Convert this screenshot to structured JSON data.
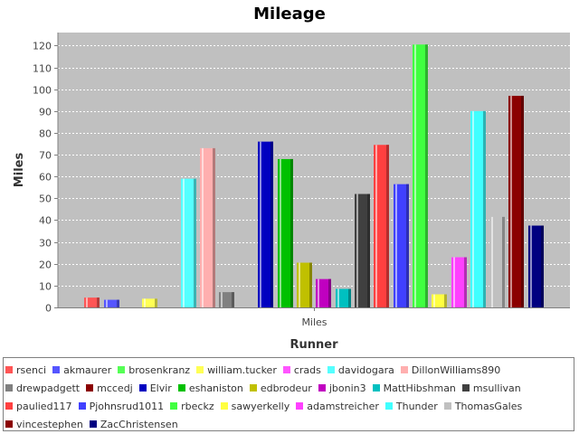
{
  "chart_data": {
    "type": "bar",
    "title": "Mileage",
    "xlabel": "Runner",
    "ylabel": "Miles",
    "categories": [
      "Miles"
    ],
    "ylim": [
      0,
      126
    ],
    "yticks": [
      0,
      10,
      20,
      30,
      40,
      50,
      60,
      70,
      80,
      90,
      100,
      110,
      120
    ],
    "grid": true,
    "legend_position": "bottom",
    "series": [
      {
        "name": "rsenci",
        "values": [
          4.5
        ],
        "color": "#ff5555"
      },
      {
        "name": "akmaurer",
        "values": [
          3.5
        ],
        "color": "#5555ff"
      },
      {
        "name": "brosenkranz",
        "values": [
          0
        ],
        "color": "#55ff55"
      },
      {
        "name": "william.tucker",
        "values": [
          4
        ],
        "color": "#ffff55"
      },
      {
        "name": "crads",
        "values": [
          0
        ],
        "color": "#ff55ff"
      },
      {
        "name": "davidogara",
        "values": [
          59
        ],
        "color": "#55ffff"
      },
      {
        "name": "DillonWilliams890",
        "values": [
          73
        ],
        "color": "#ffafaf"
      },
      {
        "name": "drewpadgett",
        "values": [
          7
        ],
        "color": "#808080"
      },
      {
        "name": "mccedj",
        "values": [
          0
        ],
        "color": "#8b0000"
      },
      {
        "name": "Elvir",
        "values": [
          76
        ],
        "color": "#0000c0"
      },
      {
        "name": "eshaniston",
        "values": [
          68
        ],
        "color": "#00c000"
      },
      {
        "name": "edbrodeur",
        "values": [
          20.5
        ],
        "color": "#c0c000"
      },
      {
        "name": "jbonin3",
        "values": [
          13
        ],
        "color": "#c000c0"
      },
      {
        "name": "MattHibshman",
        "values": [
          8.5
        ],
        "color": "#00c0c0"
      },
      {
        "name": "msullivan",
        "values": [
          52
        ],
        "color": "#404040"
      },
      {
        "name": "paulied117",
        "values": [
          74.5
        ],
        "color": "#ff4040"
      },
      {
        "name": "Pjohnsrud1011",
        "values": [
          56.5
        ],
        "color": "#4040ff"
      },
      {
        "name": "rbeckz",
        "values": [
          120.5
        ],
        "color": "#40ff40"
      },
      {
        "name": "sawyerkelly",
        "values": [
          6
        ],
        "color": "#ffff40"
      },
      {
        "name": "adamstreicher",
        "values": [
          23
        ],
        "color": "#ff40ff"
      },
      {
        "name": "Thunder",
        "values": [
          90
        ],
        "color": "#40ffff"
      },
      {
        "name": "ThomasGales",
        "values": [
          41.5
        ],
        "color": "#c0c0c0"
      },
      {
        "name": "vincestephen",
        "values": [
          97
        ],
        "color": "#8b0000"
      },
      {
        "name": "ZacChristensen",
        "values": [
          37.5
        ],
        "color": "#000080"
      }
    ]
  }
}
